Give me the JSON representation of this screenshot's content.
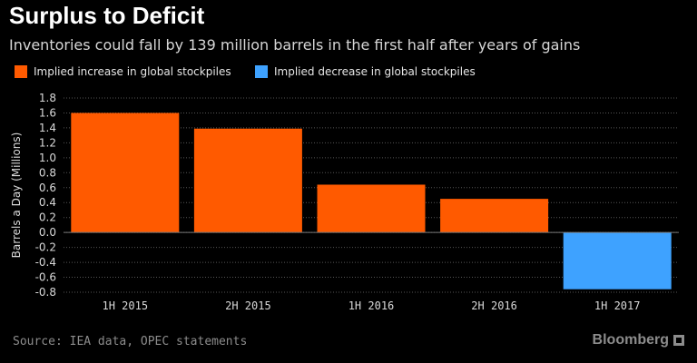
{
  "chart_data": {
    "type": "bar",
    "title": "Surplus to Deficit",
    "subtitle": "Inventories could fall by 139 million barrels in the first half after years of gains",
    "ylabel": "Barrels a Day (Millions)",
    "xlabel": "",
    "categories": [
      "1H 2015",
      "2H 2015",
      "1H 2016",
      "2H 2016",
      "1H 2017"
    ],
    "values": [
      1.6,
      1.39,
      0.64,
      0.45,
      -0.76
    ],
    "ylim": [
      -0.8,
      1.8
    ],
    "yticks": [
      1.8,
      1.6,
      1.4,
      1.2,
      1.0,
      0.8,
      0.6,
      0.4,
      0.2,
      0.0,
      -0.2,
      -0.4,
      -0.6,
      -0.8
    ],
    "ytick_labels": [
      "1.8",
      "1.6",
      "1.4",
      "1.2",
      "1.0",
      "0.8",
      "0.6",
      "0.4",
      "0.2",
      "0.0",
      "-0.2",
      "-0.4",
      "-0.6",
      "-0.8"
    ],
    "grid": true,
    "legend_position": "top-left",
    "legend": [
      {
        "label": "Implied increase in global stockpiles",
        "color": "#ff5a00"
      },
      {
        "label": "Implied decrease in global stockpiles",
        "color": "#3ea2ff"
      }
    ],
    "positive_color": "#ff5a00",
    "negative_color": "#3ea2ff"
  },
  "footer": {
    "source": "Source: IEA data, OPEC statements",
    "brand": "Bloomberg"
  }
}
